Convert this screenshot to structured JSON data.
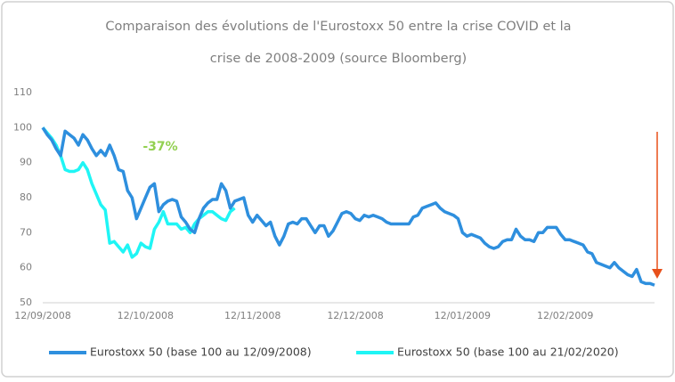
{
  "chart_data": {
    "type": "line",
    "title_lines": [
      "Comparaison des évolutions de l'Eurostoxx 50 entre la crise COVID et la",
      "crise de 2008-2009  (source Bloomberg)"
    ],
    "annotation": {
      "text": "-37%",
      "color": "#92d050"
    },
    "categories": [
      "12/09/2008",
      null,
      null,
      null,
      null,
      null,
      null,
      null,
      null,
      null,
      null,
      null,
      null,
      null,
      null,
      null,
      null,
      null,
      null,
      null,
      null,
      null,
      null,
      "12/10/2008",
      null,
      null,
      null,
      null,
      null,
      null,
      null,
      null,
      null,
      null,
      null,
      null,
      null,
      null,
      null,
      null,
      null,
      null,
      null,
      null,
      null,
      null,
      null,
      "12/11/2008",
      null,
      null,
      null,
      null,
      null,
      null,
      null,
      null,
      null,
      null,
      null,
      null,
      null,
      null,
      null,
      null,
      null,
      null,
      null,
      null,
      null,
      null,
      "12/12/2008",
      null,
      null,
      null,
      null,
      null,
      null,
      null,
      null,
      null,
      null,
      null,
      null,
      null,
      null,
      null,
      null,
      null,
      null,
      null,
      null,
      null,
      null,
      null,
      "12/01/2009",
      null,
      null,
      null,
      null,
      null,
      null,
      null,
      null,
      null,
      null,
      null,
      null,
      null,
      null,
      null,
      null,
      null,
      null,
      null,
      null,
      null,
      null,
      "12/02/2009",
      null,
      null,
      null,
      null,
      null,
      null,
      null,
      null,
      null,
      null,
      null,
      null,
      null,
      null,
      null,
      null,
      null,
      null,
      null,
      null
    ],
    "series": [
      {
        "name": "Eurostoxx 50 (base 100 au 12/09/2008)",
        "color": "#2e8fde",
        "values": [
          100,
          98,
          96.5,
          94,
          92,
          99,
          98,
          97,
          95,
          98,
          96.5,
          94,
          92,
          93.5,
          92,
          95,
          92,
          88,
          87.5,
          82,
          80,
          74,
          77,
          80,
          83,
          84,
          76,
          78,
          79,
          79.5,
          79,
          74.5,
          73,
          71,
          70,
          74,
          77,
          78.5,
          79.5,
          79.5,
          84,
          82,
          77,
          79,
          79.5,
          80,
          75,
          73,
          75,
          73.5,
          72,
          73,
          69,
          66.5,
          69,
          72.5,
          73,
          72.5,
          74,
          74,
          72,
          70,
          72,
          72,
          69,
          70.5,
          73,
          75.5,
          76,
          75.5,
          74,
          73.5,
          75,
          74.5,
          75,
          74.5,
          74,
          73,
          72.5,
          72.5,
          72.5,
          72.5,
          72.5,
          74.5,
          75,
          77,
          77.5,
          78,
          78.5,
          77,
          76,
          75.5,
          75,
          74,
          70,
          69,
          69.5,
          69,
          68.5,
          67,
          66,
          65.5,
          66,
          67.5,
          68,
          68,
          71,
          69,
          68,
          68,
          67.5,
          70,
          70,
          71.5,
          71.5,
          71.5,
          69.5,
          68,
          68,
          67.5,
          67,
          66.5,
          64.5,
          64,
          61.5,
          61,
          60.5,
          60,
          61.5,
          60,
          59,
          58,
          57.5,
          59.5,
          56,
          55.5,
          55.5,
          55
        ]
      },
      {
        "name": "Eurostoxx 50 (base 100 au  21/02/2020)",
        "color": "#1ff5f5",
        "values": [
          100,
          98.5,
          97,
          95,
          92,
          88,
          87.5,
          87.5,
          88,
          90,
          88,
          84,
          81,
          78,
          76.5,
          67,
          67.5,
          66,
          64.5,
          66.5,
          63,
          64,
          67,
          66,
          65.5,
          71,
          73,
          76,
          72.5,
          72.5,
          72.5,
          71,
          71.5,
          70,
          72.5,
          74,
          75,
          76,
          76,
          75,
          74,
          73.5,
          76,
          77,
          null,
          null,
          null,
          null,
          null,
          null,
          null,
          null,
          null,
          null,
          null,
          null,
          null,
          null,
          null,
          null,
          null,
          null,
          null,
          null,
          null,
          null,
          null,
          null,
          null,
          null,
          null,
          null,
          null,
          null,
          null,
          null,
          null,
          null,
          null,
          null,
          null,
          null,
          null,
          null,
          null,
          null,
          null,
          null,
          null,
          null,
          null,
          null,
          null,
          null,
          null,
          null,
          null,
          null,
          null,
          null,
          null,
          null,
          null,
          null,
          null,
          null,
          null,
          null,
          null,
          null,
          null,
          null,
          null,
          null,
          null,
          null,
          null,
          null,
          null,
          null,
          null,
          null,
          null,
          null,
          null,
          null,
          null,
          null,
          null,
          null,
          null,
          null,
          null,
          null,
          null,
          null,
          null,
          null
        ]
      }
    ],
    "ylim": [
      50,
      110
    ],
    "yticks": [
      50,
      60,
      70,
      80,
      90,
      100,
      110
    ],
    "grid": false
  }
}
